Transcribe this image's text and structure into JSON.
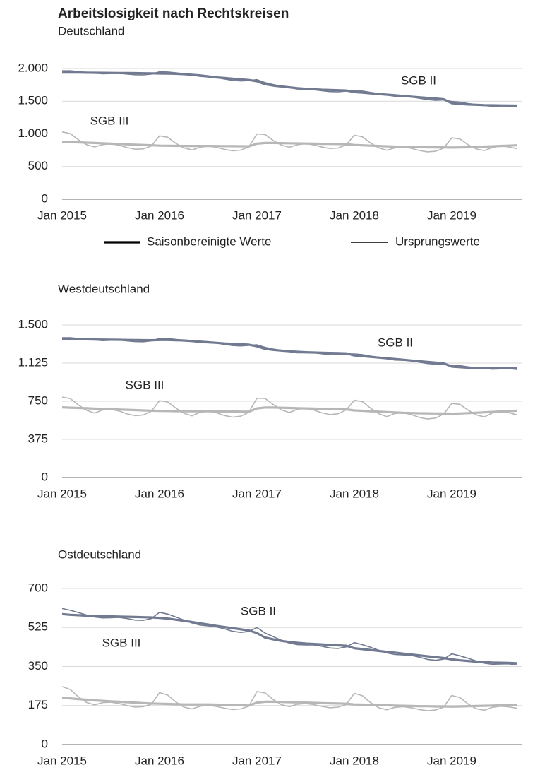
{
  "title": "Arbeitslosigkeit nach Rechtskreisen",
  "chart_data": [
    {
      "type": "line",
      "subtitle": "Deutschland",
      "categories": [
        "Jan 2015",
        null,
        null,
        null,
        null,
        null,
        null,
        null,
        null,
        null,
        null,
        null,
        "Jan 2016",
        null,
        null,
        null,
        null,
        null,
        null,
        null,
        null,
        null,
        null,
        null,
        "Jan 2017",
        null,
        null,
        null,
        null,
        null,
        null,
        null,
        null,
        null,
        null,
        null,
        "Jan 2018",
        null,
        null,
        null,
        null,
        null,
        null,
        null,
        null,
        null,
        null,
        null,
        "Jan 2019",
        null,
        null,
        null,
        null,
        null,
        null,
        null,
        null
      ],
      "ylim": [
        0,
        2000
      ],
      "yticks": [
        0,
        500,
        {
          "value": 1000,
          "label": "1.000"
        },
        {
          "value": 1500,
          "label": "1.500"
        },
        {
          "value": 2000,
          "label": "2.000"
        }
      ],
      "grid": true,
      "legend": {
        "adjusted": "Saisonbereinigte Werte",
        "original": "Ursprungswerte"
      },
      "groups": [
        {
          "name": "SGB II",
          "color": "#717a90",
          "adjusted": [
            1940,
            1940,
            1938,
            1936,
            1935,
            1934,
            1933,
            1932,
            1931,
            1930,
            1928,
            1926,
            1924,
            1922,
            1920,
            1915,
            1905,
            1895,
            1880,
            1865,
            1855,
            1845,
            1835,
            1825,
            1805,
            1760,
            1740,
            1725,
            1712,
            1700,
            1690,
            1682,
            1676,
            1672,
            1668,
            1664,
            1640,
            1630,
            1620,
            1610,
            1600,
            1590,
            1580,
            1570,
            1560,
            1550,
            1540,
            1530,
            1470,
            1460,
            1450,
            1445,
            1440,
            1438,
            1436,
            1434,
            1432
          ],
          "original": [
            1965,
            1965,
            1953,
            1941,
            1930,
            1919,
            1923,
            1927,
            1916,
            1905,
            1903,
            1916,
            1949,
            1947,
            1935,
            1920,
            1900,
            1880,
            1870,
            1860,
            1840,
            1820,
            1810,
            1815,
            1830,
            1785,
            1755,
            1730,
            1707,
            1685,
            1680,
            1677,
            1661,
            1647,
            1643,
            1654,
            1665,
            1655,
            1635,
            1615,
            1595,
            1575,
            1570,
            1565,
            1545,
            1525,
            1515,
            1520,
            1495,
            1485,
            1465,
            1450,
            1435,
            1423,
            1426,
            1429,
            1417
          ]
        },
        {
          "name": "SGB III",
          "color": "#b7b7b7",
          "adjusted": [
            880,
            875,
            870,
            865,
            860,
            855,
            850,
            845,
            840,
            835,
            830,
            825,
            820,
            818,
            816,
            815,
            815,
            815,
            815,
            814,
            813,
            812,
            811,
            810,
            850,
            860,
            860,
            858,
            856,
            854,
            852,
            850,
            848,
            846,
            844,
            842,
            830,
            825,
            820,
            815,
            810,
            805,
            800,
            798,
            796,
            795,
            794,
            793,
            790,
            792,
            795,
            800,
            805,
            810,
            815,
            820,
            825
          ],
          "original": [
            1030,
            1005,
            910,
            835,
            800,
            835,
            850,
            825,
            790,
            765,
            770,
            815,
            970,
            948,
            856,
            785,
            755,
            795,
            815,
            794,
            763,
            742,
            751,
            800,
            1000,
            990,
            900,
            828,
            796,
            834,
            852,
            830,
            798,
            776,
            784,
            832,
            980,
            955,
            860,
            785,
            750,
            785,
            800,
            778,
            746,
            725,
            734,
            783,
            940,
            922,
            835,
            770,
            745,
            790,
            815,
            800,
            775
          ]
        }
      ]
    },
    {
      "type": "line",
      "subtitle": "Westdeutschland",
      "categories": [
        "Jan 2015",
        null,
        null,
        null,
        null,
        null,
        null,
        null,
        null,
        null,
        null,
        null,
        "Jan 2016",
        null,
        null,
        null,
        null,
        null,
        null,
        null,
        null,
        null,
        null,
        null,
        "Jan 2017",
        null,
        null,
        null,
        null,
        null,
        null,
        null,
        null,
        null,
        null,
        null,
        "Jan 2018",
        null,
        null,
        null,
        null,
        null,
        null,
        null,
        null,
        null,
        null,
        null,
        "Jan 2019",
        null,
        null,
        null,
        null,
        null,
        null,
        null,
        null
      ],
      "ylim": [
        0,
        1500
      ],
      "yticks": [
        0,
        375,
        750,
        {
          "value": 1125,
          "label": "1.125"
        },
        {
          "value": 1500,
          "label": "1.500"
        }
      ],
      "grid": true,
      "groups": [
        {
          "name": "SGB II",
          "color": "#717a90",
          "adjusted": [
            1360,
            1360,
            1359,
            1358,
            1357,
            1356,
            1355,
            1354,
            1353,
            1352,
            1351,
            1350,
            1352,
            1352,
            1350,
            1347,
            1342,
            1336,
            1330,
            1324,
            1318,
            1314,
            1310,
            1306,
            1290,
            1265,
            1255,
            1248,
            1242,
            1236,
            1232,
            1229,
            1227,
            1225,
            1223,
            1221,
            1200,
            1193,
            1186,
            1179,
            1172,
            1165,
            1158,
            1151,
            1144,
            1137,
            1130,
            1123,
            1090,
            1085,
            1080,
            1078,
            1076,
            1075,
            1074,
            1074,
            1073
          ],
          "original": [
            1375,
            1375,
            1367,
            1360,
            1353,
            1346,
            1349,
            1352,
            1343,
            1336,
            1335,
            1344,
            1367,
            1367,
            1358,
            1349,
            1338,
            1326,
            1324,
            1322,
            1308,
            1298,
            1294,
            1300,
            1305,
            1280,
            1263,
            1250,
            1238,
            1226,
            1226,
            1227,
            1217,
            1209,
            1207,
            1215,
            1215,
            1208,
            1194,
            1181,
            1168,
            1155,
            1152,
            1149,
            1134,
            1121,
            1114,
            1117,
            1105,
            1100,
            1088,
            1080,
            1072,
            1065,
            1068,
            1072,
            1063
          ]
        },
        {
          "name": "SGB III",
          "color": "#b7b7b7",
          "adjusted": [
            690,
            687,
            684,
            681,
            678,
            675,
            672,
            669,
            666,
            663,
            660,
            657,
            655,
            654,
            653,
            652,
            652,
            652,
            652,
            651,
            650,
            649,
            648,
            647,
            680,
            688,
            688,
            686,
            684,
            682,
            680,
            678,
            676,
            674,
            672,
            670,
            660,
            656,
            652,
            648,
            644,
            640,
            636,
            634,
            632,
            631,
            630,
            629,
            628,
            630,
            633,
            637,
            641,
            645,
            649,
            653,
            657
          ],
          "original": [
            790,
            777,
            714,
            661,
            633,
            665,
            672,
            654,
            626,
            608,
            615,
            652,
            755,
            744,
            683,
            632,
            607,
            642,
            652,
            636,
            610,
            594,
            603,
            642,
            780,
            778,
            718,
            666,
            639,
            672,
            680,
            663,
            636,
            619,
            627,
            665,
            760,
            746,
            682,
            628,
            599,
            630,
            636,
            619,
            592,
            576,
            585,
            624,
            728,
            720,
            663,
            617,
            596,
            635,
            649,
            638,
            617
          ]
        }
      ]
    },
    {
      "type": "line",
      "subtitle": "Ostdeutschland",
      "categories": [
        "Jan 2015",
        null,
        null,
        null,
        null,
        null,
        null,
        null,
        null,
        null,
        null,
        null,
        "Jan 2016",
        null,
        null,
        null,
        null,
        null,
        null,
        null,
        null,
        null,
        null,
        null,
        "Jan 2017",
        null,
        null,
        null,
        null,
        null,
        null,
        null,
        null,
        null,
        null,
        null,
        "Jan 2018",
        null,
        null,
        null,
        null,
        null,
        null,
        null,
        null,
        null,
        null,
        null,
        "Jan 2019",
        null,
        null,
        null,
        null,
        null,
        null,
        null,
        null
      ],
      "ylim": [
        0,
        700
      ],
      "yticks": [
        0,
        175,
        350,
        525,
        700
      ],
      "grid": true,
      "groups": [
        {
          "name": "SGB II",
          "color": "#717a90",
          "adjusted": [
            585,
            582,
            580,
            578,
            577,
            576,
            575,
            574,
            573,
            572,
            571,
            570,
            568,
            565,
            560,
            555,
            550,
            544,
            538,
            532,
            527,
            522,
            517,
            512,
            500,
            480,
            472,
            465,
            460,
            456,
            453,
            451,
            449,
            447,
            445,
            443,
            432,
            428,
            424,
            420,
            416,
            412,
            408,
            404,
            400,
            396,
            392,
            388,
            382,
            378,
            375,
            372,
            370,
            368,
            367,
            366,
            365
          ],
          "original": [
            610,
            602,
            592,
            581,
            572,
            568,
            569,
            570,
            565,
            558,
            557,
            565,
            593,
            585,
            572,
            558,
            545,
            536,
            532,
            528,
            519,
            508,
            503,
            507,
            525,
            500,
            484,
            468,
            455,
            448,
            447,
            447,
            441,
            433,
            431,
            438,
            457,
            448,
            436,
            423,
            411,
            404,
            402,
            400,
            392,
            382,
            378,
            383,
            407,
            398,
            387,
            375,
            365,
            360,
            361,
            362,
            357
          ]
        },
        {
          "name": "SGB III",
          "color": "#b7b7b7",
          "adjusted": [
            210,
            207,
            204,
            201,
            198,
            196,
            194,
            192,
            190,
            188,
            186,
            184,
            183,
            182,
            181,
            180,
            180,
            180,
            180,
            179,
            178,
            177,
            176,
            175,
            188,
            192,
            192,
            191,
            190,
            189,
            188,
            187,
            186,
            185,
            184,
            183,
            180,
            179,
            178,
            177,
            176,
            175,
            174,
            173,
            172,
            172,
            171,
            171,
            170,
            171,
            172,
            173,
            174,
            175,
            176,
            177,
            178
          ],
          "original": [
            260,
            247,
            214,
            189,
            178,
            188,
            190,
            184,
            175,
            168,
            170,
            181,
            233,
            222,
            191,
            168,
            160,
            172,
            176,
            171,
            163,
            157,
            160,
            172,
            238,
            232,
            202,
            179,
            170,
            181,
            184,
            179,
            171,
            165,
            168,
            180,
            230,
            219,
            188,
            165,
            156,
            167,
            170,
            165,
            157,
            152,
            155,
            168,
            220,
            211,
            182,
            161,
            154,
            167,
            172,
            169,
            163
          ]
        }
      ]
    }
  ]
}
